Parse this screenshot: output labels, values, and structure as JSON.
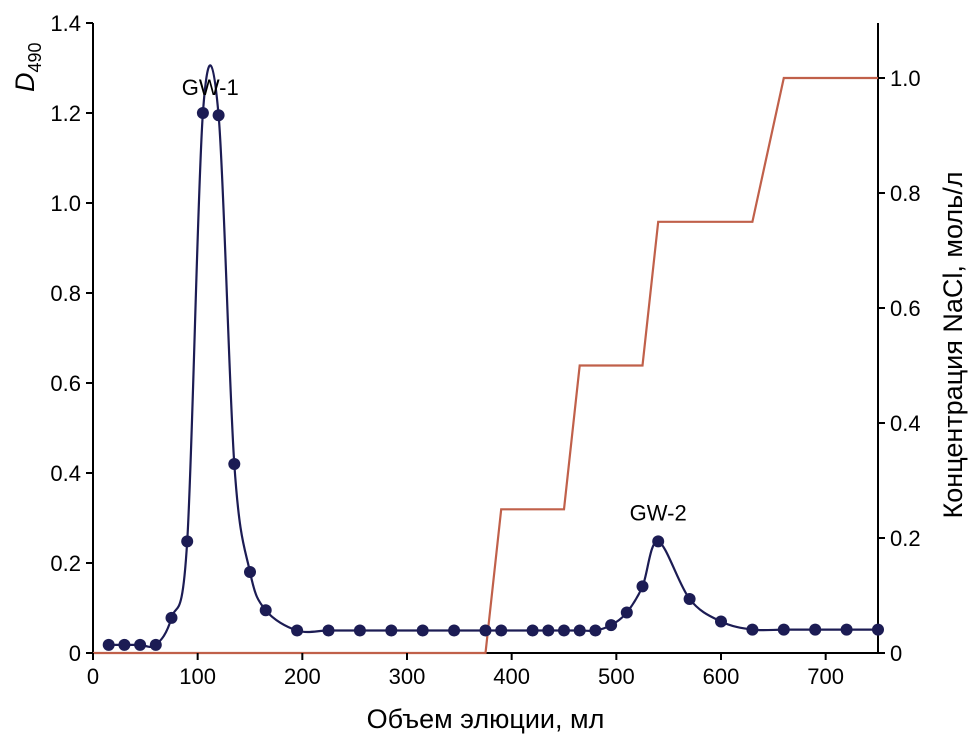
{
  "chart_data": {
    "type": "line",
    "title": "",
    "xlabel": "Объем элюции, мл",
    "ylabel_main": "D",
    "ylabel_sub": "490",
    "y2label": "Концентрация NaCl, моль/л",
    "xlim": [
      0,
      750
    ],
    "ylim": [
      0,
      1.4
    ],
    "y2lim": [
      0,
      1.1
    ],
    "x_ticks": [
      0,
      100,
      200,
      300,
      400,
      500,
      600,
      700
    ],
    "x_tick_labels": [
      "0",
      "100",
      "200",
      "300",
      "400",
      "500",
      "600",
      "700"
    ],
    "y_ticks": [
      0,
      0.2,
      0.4,
      0.6,
      0.8,
      1.0,
      1.2,
      1.4
    ],
    "y_tick_labels": [
      "0",
      "0.2",
      "0.4",
      "0.6",
      "0.8",
      "1.0",
      "1.2",
      "1.4"
    ],
    "y2_ticks": [
      0,
      0.2,
      0.4,
      0.6,
      0.8,
      1.0
    ],
    "y2_tick_labels": [
      "0",
      "0.2",
      "0.4",
      "0.6",
      "0.8",
      "1.0"
    ],
    "colors": {
      "absorbance": "#1c1c54",
      "marker": "#1c1c54",
      "gradient": "#c0604a",
      "axis": "#000000"
    },
    "series": [
      {
        "name": "D490",
        "axis": "left",
        "x": [
          15,
          30,
          45,
          60,
          75,
          90,
          105,
          120,
          135,
          150,
          165,
          195,
          225,
          255,
          285,
          315,
          345,
          375,
          390,
          420,
          435,
          450,
          465,
          480,
          495,
          510,
          525,
          540,
          570,
          600,
          630,
          660,
          690,
          720,
          750
        ],
        "y": [
          0.018,
          0.018,
          0.018,
          0.018,
          0.078,
          0.248,
          1.2,
          1.195,
          0.42,
          0.18,
          0.095,
          0.05,
          0.05,
          0.05,
          0.05,
          0.05,
          0.05,
          0.05,
          0.05,
          0.05,
          0.05,
          0.05,
          0.05,
          0.05,
          0.062,
          0.09,
          0.148,
          0.248,
          0.12,
          0.07,
          0.052,
          0.052,
          0.052,
          0.052,
          0.052
        ]
      },
      {
        "name": "NaCl",
        "axis": "right",
        "x": [
          0,
          375,
          390,
          450,
          465,
          525,
          540,
          600,
          615,
          630,
          660,
          750
        ],
        "y": [
          0,
          0,
          0.25,
          0.25,
          0.5,
          0.5,
          0.75,
          0.75,
          0.75,
          0.75,
          1.0,
          1.0
        ]
      }
    ],
    "annotations": [
      {
        "text": "GW-1",
        "x": 112,
        "y": 1.24
      },
      {
        "text": "GW-2",
        "x": 540,
        "y": 0.295
      }
    ]
  }
}
